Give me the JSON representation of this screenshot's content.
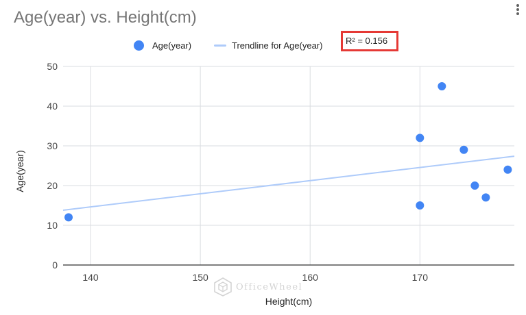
{
  "chart_data": {
    "type": "scatter",
    "title": "Age(year) vs. Height(cm)",
    "xlabel": "Height(cm)",
    "ylabel": "Age(year)",
    "xlim": [
      137.5,
      178.6
    ],
    "ylim": [
      0,
      50
    ],
    "x_ticks": [
      140,
      150,
      160,
      170
    ],
    "y_ticks": [
      0,
      10,
      20,
      30,
      40,
      50
    ],
    "grid": true,
    "legend_position": "top",
    "series": [
      {
        "name": "Age(year)",
        "color": "#4285f4",
        "points": [
          {
            "x": 138,
            "y": 12
          },
          {
            "x": 170,
            "y": 15
          },
          {
            "x": 170,
            "y": 32
          },
          {
            "x": 172,
            "y": 45
          },
          {
            "x": 174,
            "y": 29
          },
          {
            "x": 175,
            "y": 20
          },
          {
            "x": 176,
            "y": 17
          },
          {
            "x": 178,
            "y": 24
          }
        ]
      }
    ],
    "trendline": {
      "name": "Trendline for Age(year)",
      "color": "#aecbfa",
      "start": {
        "x": 137.5,
        "y": 13.8
      },
      "end": {
        "x": 178.6,
        "y": 27.4
      },
      "r_squared_label": "R² = 0.156"
    }
  },
  "watermark": {
    "text": "OfficeWheel",
    "icon": "cube-logo-icon"
  },
  "menu": {
    "icon": "more-vertical-icon"
  }
}
